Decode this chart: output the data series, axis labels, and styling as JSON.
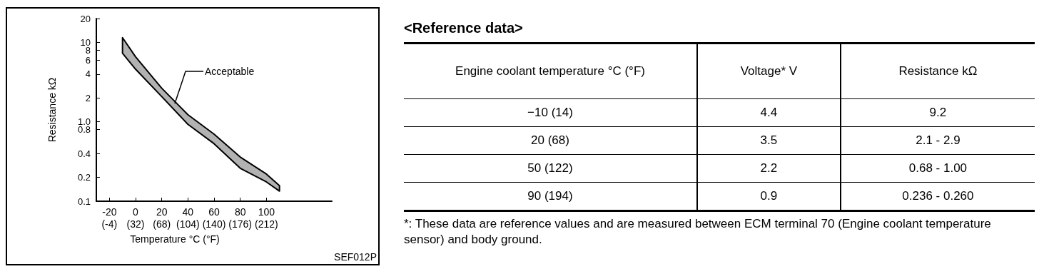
{
  "chart_data": [
    {
      "type": "line",
      "xlabel": "Temperature °C (°F)",
      "ylabel": "Resistance kΩ",
      "log": "y",
      "grid": false,
      "xlim": [
        -30,
        150
      ],
      "ylim": [
        0.1,
        20
      ],
      "xticks": [
        -20,
        0,
        20,
        40,
        60,
        80,
        100
      ],
      "x2lim": [
        -22,
        302
      ],
      "x2ticks": [
        {
          "value": -4,
          "label": "(-4)"
        },
        {
          "value": 32,
          "label": "(32)"
        },
        {
          "value": 68,
          "label": "(68)"
        },
        {
          "value": 104,
          "label": "(104)"
        },
        {
          "value": 140,
          "label": "(140)"
        },
        {
          "value": 176,
          "label": "(176)"
        },
        {
          "value": 212,
          "label": "(212)"
        }
      ],
      "yticks": [
        0.1,
        0.2,
        0.4,
        {
          "value": 0.8,
          "label": "0.8"
        },
        {
          "value": 1,
          "label": "1.0"
        },
        2,
        4,
        6,
        8,
        10,
        20
      ],
      "x": [
        -10,
        0,
        20,
        40,
        60,
        80,
        100,
        110
      ],
      "series": [
        {
          "color": "#000000",
          "values": [
            null,
            null,
            null,
            null,
            null,
            null,
            null,
            null
          ],
          "upper": [
            11.5,
            6.6,
            2.65,
            1.23,
            0.7,
            0.36,
            0.22,
            0.157
          ],
          "lower": [
            7.3,
            4.6,
            2.08,
            0.93,
            0.53,
            0.26,
            0.175,
            0.134
          ]
        }
      ],
      "annotations": [
        {
          "text": "Acceptable",
          "x": 30,
          "y": 1.7
        },
        "SEF012P"
      ]
    },
    {
      "type": "other",
      "title": "<Reference data>",
      "annotations": [
        "Engine coolant temperature °C (°F)",
        "Voltage*  V",
        "Resistance  kΩ",
        "−10 (14)",
        "4.4",
        "9.2",
        "20 (68)",
        "3.5",
        "2.1 - 2.9",
        "50 (122)",
        "2.2",
        "0.68 - 1.00",
        "90 (194)",
        "0.9",
        "0.236 - 0.260",
        "*: These data are reference values and are measured between ECM terminal 70 (Engine coolant temperature sensor) and body ground."
      ]
    }
  ]
}
